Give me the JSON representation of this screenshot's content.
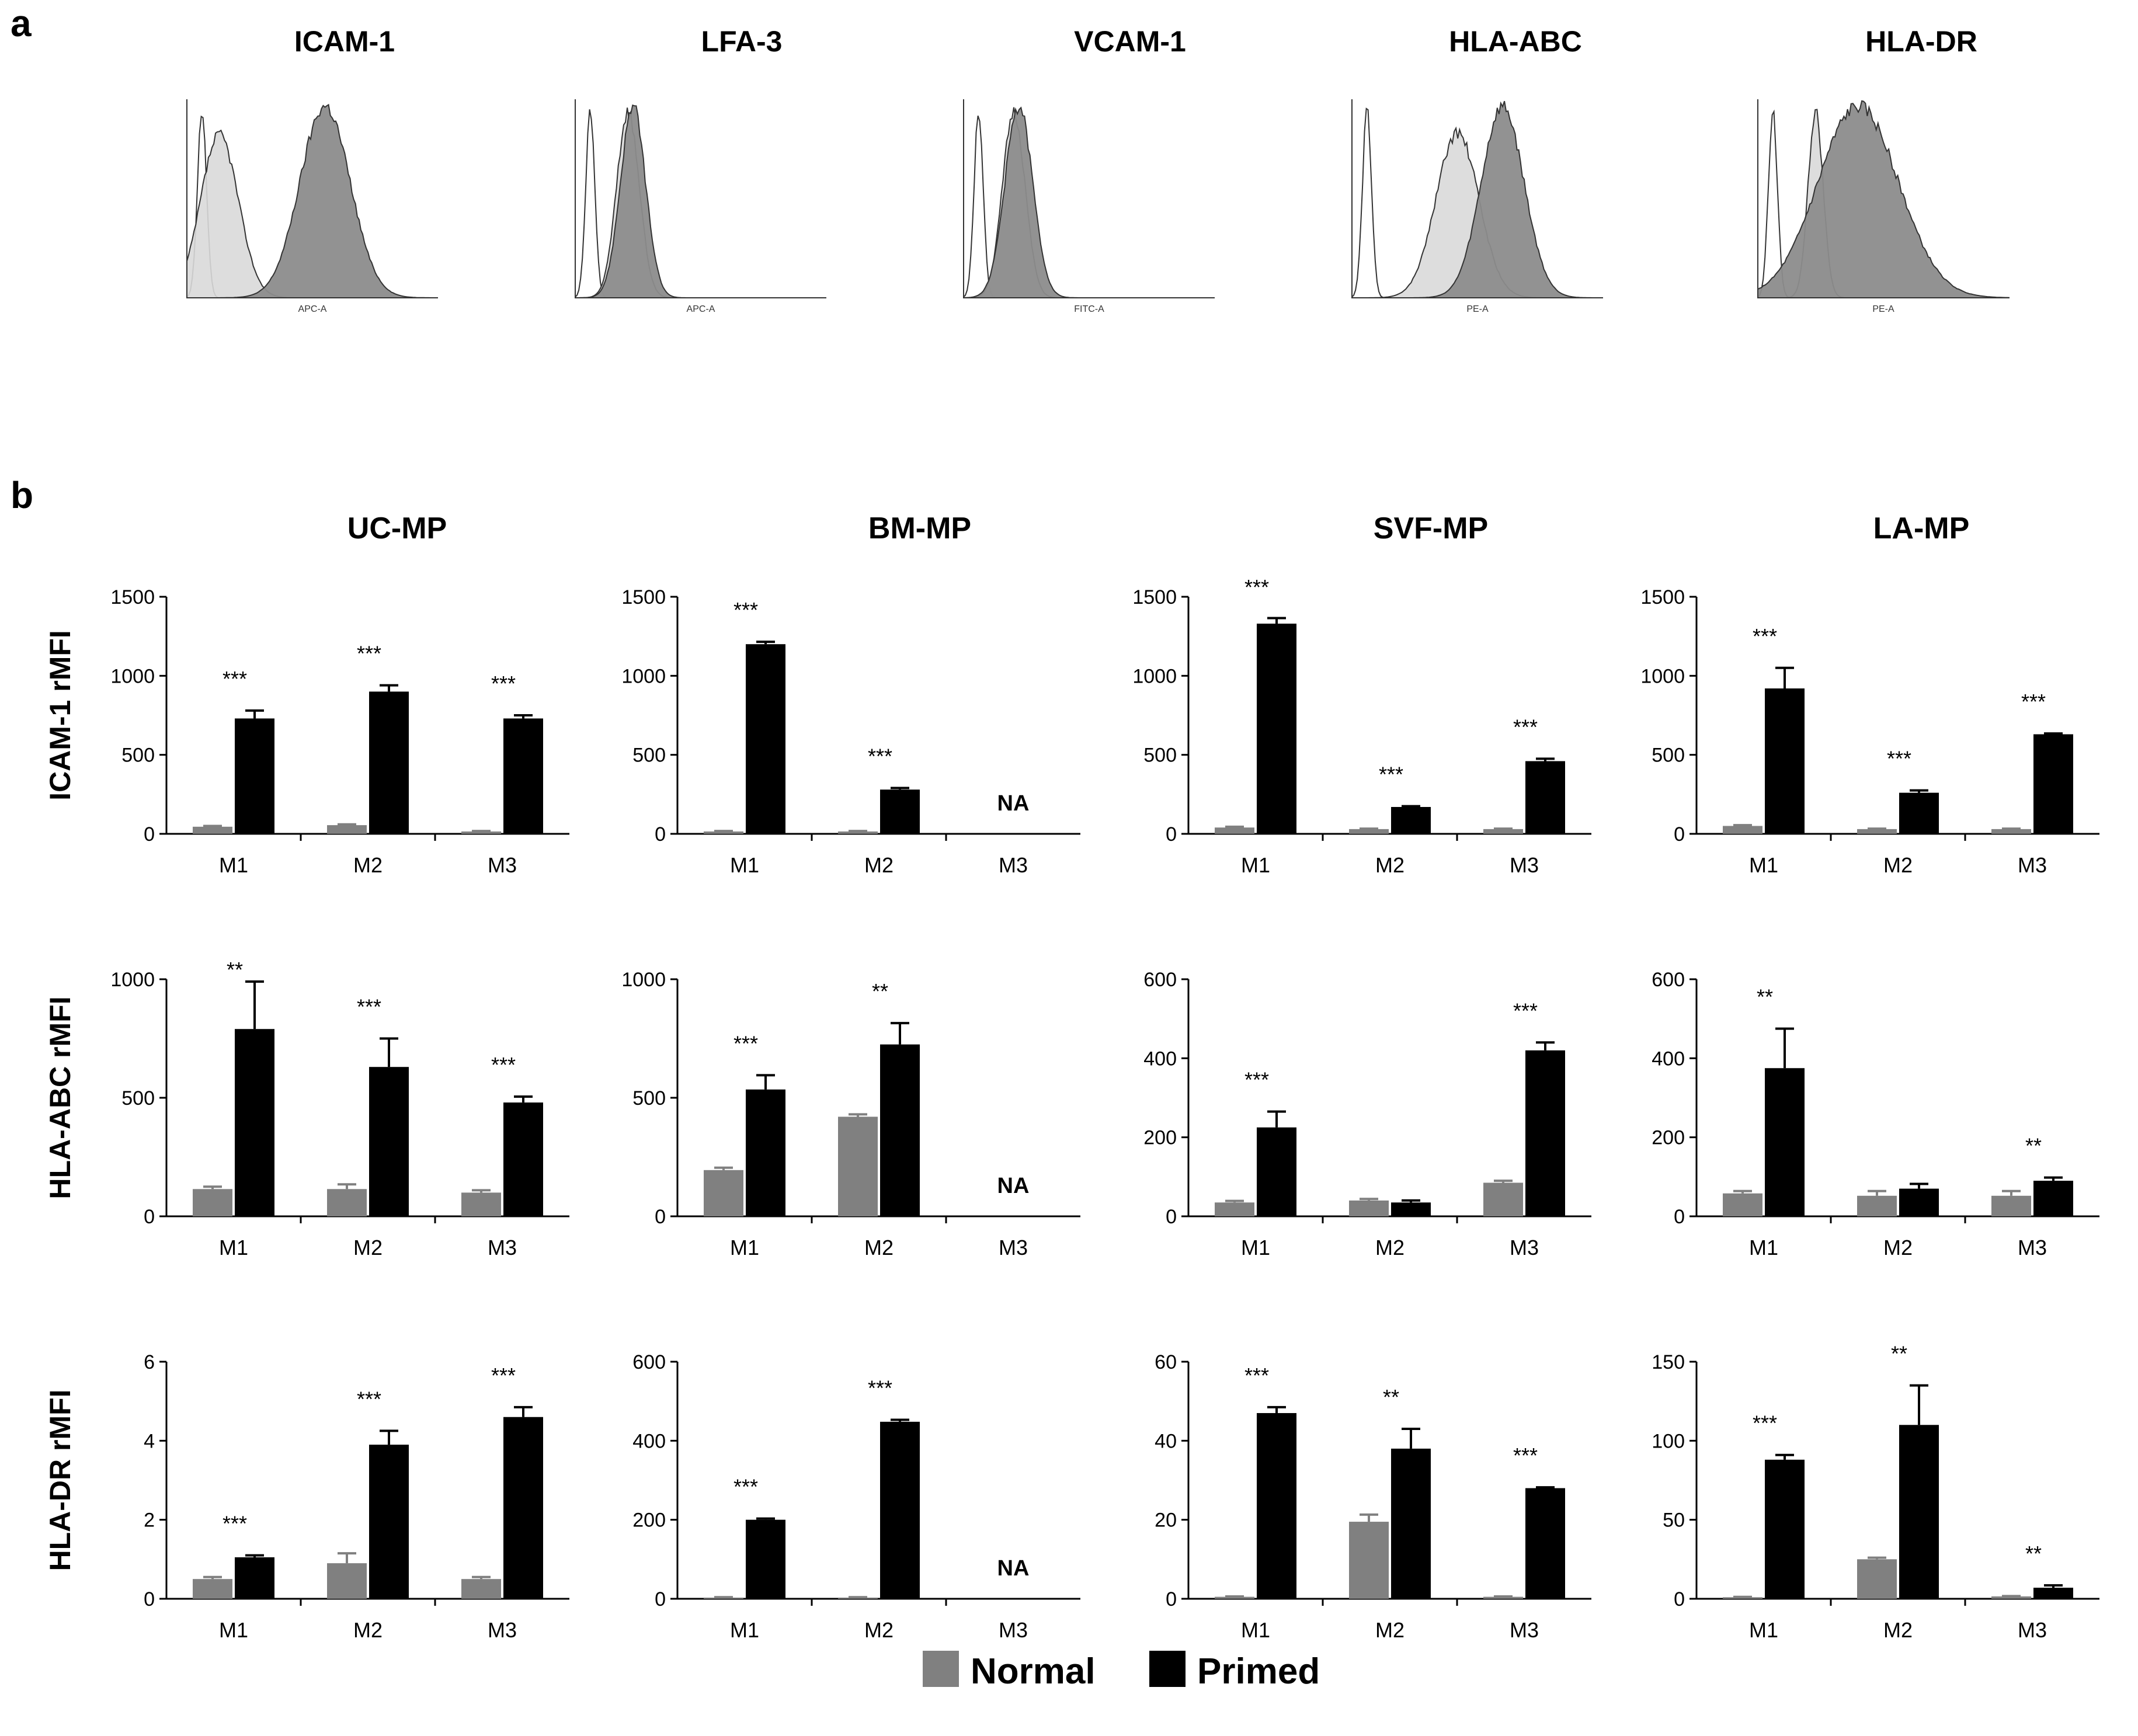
{
  "panel_a_label": "a",
  "panel_b_label": "b",
  "colors": {
    "normal": "#808080",
    "primed": "#000000",
    "hist_control_fill": "#ffffff",
    "hist_light_fill": "#d9d9d9",
    "hist_dark_fill": "#8c8c8c",
    "hist_outline": "#333333"
  },
  "histograms": [
    {
      "title": "ICAM-1",
      "xlabel": "APC-A",
      "light": [
        0.9,
        0.13,
        0.075,
        0.85
      ],
      "dark": [
        0.9,
        0.55,
        0.1,
        1.0
      ]
    },
    {
      "title": "LFA-3",
      "xlabel": "APC-A",
      "light": [
        0.9,
        0.21,
        0.045,
        0.97
      ],
      "dark": [
        0.9,
        0.23,
        0.05,
        1.0
      ]
    },
    {
      "title": "VCAM-1",
      "xlabel": "FITC-A",
      "light": [
        0.9,
        0.2,
        0.045,
        0.97
      ],
      "dark": [
        0.9,
        0.22,
        0.055,
        1.0
      ]
    },
    {
      "title": "HLA-ABC",
      "xlabel": "PE-A",
      "light": [
        0.9,
        0.42,
        0.085,
        0.86
      ],
      "dark": [
        0.9,
        0.6,
        0.085,
        1.0
      ]
    },
    {
      "title": "HLA-DR",
      "xlabel": "PE-A",
      "light": [
        0.9,
        0.23,
        0.03,
        0.97
      ],
      "dark": [
        0.9,
        0.4,
        0.16,
        1.0
      ]
    }
  ],
  "column_titles": [
    "UC-MP",
    "BM-MP",
    "SVF-MP",
    "LA-MP"
  ],
  "row_titles": [
    "ICAM-1 rMFI",
    "HLA-ABC rMFI",
    "HLA-DR rMFI"
  ],
  "legend": {
    "normal": "Normal",
    "primed": "Primed"
  },
  "chart_data": [
    {
      "type": "bar",
      "row": 0,
      "col": 0,
      "ylabel": "ICAM-1 rMFI",
      "title": "UC-MP",
      "ylim": [
        0,
        1500
      ],
      "yticks": [
        "0",
        "500",
        "1000",
        "1500"
      ],
      "yticks_values": [
        0,
        500,
        1000,
        1500
      ],
      "categories": [
        "M1",
        "M2",
        "M3"
      ],
      "series": [
        {
          "name": "Normal",
          "values": [
            45,
            55,
            15
          ],
          "errors": [
            5,
            5,
            3
          ]
        },
        {
          "name": "Primed",
          "values": [
            730,
            900,
            730
          ],
          "errors": [
            50,
            40,
            20
          ]
        }
      ],
      "significance": [
        "***",
        "***",
        "***"
      ],
      "na": [
        false,
        false,
        false
      ]
    },
    {
      "type": "bar",
      "row": 0,
      "col": 1,
      "ylabel": "ICAM-1 rMFI",
      "title": "BM-MP",
      "ylim": [
        0,
        1500
      ],
      "yticks": [
        "0",
        "500",
        "1000",
        "1500"
      ],
      "yticks_values": [
        0,
        500,
        1000,
        1500
      ],
      "categories": [
        "M1",
        "M2",
        "M3"
      ],
      "series": [
        {
          "name": "Normal",
          "values": [
            15,
            15,
            null
          ],
          "errors": [
            3,
            3,
            null
          ]
        },
        {
          "name": "Primed",
          "values": [
            1200,
            280,
            null
          ],
          "errors": [
            15,
            10,
            null
          ]
        }
      ],
      "significance": [
        "***",
        "***",
        ""
      ],
      "na": [
        false,
        false,
        true
      ],
      "na_text": "NA"
    },
    {
      "type": "bar",
      "row": 0,
      "col": 2,
      "ylabel": "ICAM-1 rMFI",
      "title": "SVF-MP",
      "ylim": [
        0,
        1500
      ],
      "yticks": [
        "0",
        "500",
        "1000",
        "1500"
      ],
      "yticks_values": [
        0,
        500,
        1000,
        1500
      ],
      "categories": [
        "M1",
        "M2",
        "M3"
      ],
      "series": [
        {
          "name": "Normal",
          "values": [
            40,
            30,
            30
          ],
          "errors": [
            5,
            3,
            3
          ]
        },
        {
          "name": "Primed",
          "values": [
            1330,
            170,
            460
          ],
          "errors": [
            35,
            5,
            15
          ]
        }
      ],
      "significance": [
        "***",
        "***",
        "***"
      ],
      "na": [
        false,
        false,
        false
      ]
    },
    {
      "type": "bar",
      "row": 0,
      "col": 3,
      "ylabel": "ICAM-1 rMFI",
      "title": "LA-MP",
      "ylim": [
        0,
        1500
      ],
      "yticks": [
        "0",
        "500",
        "1000",
        "1500"
      ],
      "yticks_values": [
        0,
        500,
        1000,
        1500
      ],
      "categories": [
        "M1",
        "M2",
        "M3"
      ],
      "series": [
        {
          "name": "Normal",
          "values": [
            50,
            30,
            30
          ],
          "errors": [
            5,
            3,
            3
          ]
        },
        {
          "name": "Primed",
          "values": [
            920,
            260,
            630
          ],
          "errors": [
            130,
            15,
            5
          ]
        }
      ],
      "significance": [
        "***",
        "***",
        "***"
      ],
      "na": [
        false,
        false,
        false
      ]
    },
    {
      "type": "bar",
      "row": 1,
      "col": 0,
      "ylabel": "HLA-ABC rMFI",
      "title": "UC-MP",
      "ylim": [
        0,
        1000
      ],
      "yticks": [
        "0",
        "500",
        "1000"
      ],
      "yticks_values": [
        0,
        500,
        1000
      ],
      "categories": [
        "M1",
        "M2",
        "M3"
      ],
      "series": [
        {
          "name": "Normal",
          "values": [
            115,
            115,
            100
          ],
          "errors": [
            10,
            20,
            10
          ]
        },
        {
          "name": "Primed",
          "values": [
            790,
            630,
            480
          ],
          "errors": [
            200,
            120,
            25
          ]
        }
      ],
      "significance": [
        "**",
        "***",
        "***"
      ],
      "na": [
        false,
        false,
        false
      ]
    },
    {
      "type": "bar",
      "row": 1,
      "col": 1,
      "ylabel": "HLA-ABC rMFI",
      "title": "BM-MP",
      "ylim": [
        0,
        1000
      ],
      "yticks": [
        "0",
        "500",
        "1000"
      ],
      "yticks_values": [
        0,
        500,
        1000
      ],
      "categories": [
        "M1",
        "M2",
        "M3"
      ],
      "series": [
        {
          "name": "Normal",
          "values": [
            195,
            420,
            null
          ],
          "errors": [
            10,
            10,
            null
          ]
        },
        {
          "name": "Primed",
          "values": [
            535,
            725,
            null
          ],
          "errors": [
            60,
            90,
            null
          ]
        }
      ],
      "significance": [
        "***",
        "**",
        ""
      ],
      "na": [
        false,
        false,
        true
      ],
      "na_text": "NA"
    },
    {
      "type": "bar",
      "row": 1,
      "col": 2,
      "ylabel": "HLA-ABC rMFI",
      "title": "SVF-MP",
      "ylim": [
        0,
        600
      ],
      "yticks": [
        "0",
        "200",
        "400",
        "600"
      ],
      "yticks_values": [
        0,
        200,
        400,
        600
      ],
      "categories": [
        "M1",
        "M2",
        "M3"
      ],
      "series": [
        {
          "name": "Normal",
          "values": [
            35,
            40,
            85
          ],
          "errors": [
            4,
            4,
            5
          ]
        },
        {
          "name": "Primed",
          "values": [
            225,
            35,
            420
          ],
          "errors": [
            40,
            5,
            20
          ]
        }
      ],
      "significance": [
        "***",
        "",
        "***"
      ],
      "na": [
        false,
        false,
        false
      ]
    },
    {
      "type": "bar",
      "row": 1,
      "col": 3,
      "ylabel": "HLA-ABC rMFI",
      "title": "LA-MP",
      "ylim": [
        0,
        600
      ],
      "yticks": [
        "0",
        "200",
        "400",
        "600"
      ],
      "yticks_values": [
        0,
        200,
        400,
        600
      ],
      "categories": [
        "M1",
        "M2",
        "M3"
      ],
      "series": [
        {
          "name": "Normal",
          "values": [
            58,
            52,
            52
          ],
          "errors": [
            6,
            12,
            12
          ]
        },
        {
          "name": "Primed",
          "values": [
            375,
            70,
            90
          ],
          "errors": [
            100,
            12,
            8
          ]
        }
      ],
      "significance": [
        "**",
        "",
        "**"
      ],
      "na": [
        false,
        false,
        false
      ]
    },
    {
      "type": "bar",
      "row": 2,
      "col": 0,
      "ylabel": "HLA-DR rMFI",
      "title": "UC-MP",
      "ylim": [
        0,
        6
      ],
      "yticks": [
        "0",
        "2",
        "4",
        "6"
      ],
      "yticks_values": [
        0,
        2,
        4,
        6
      ],
      "categories": [
        "M1",
        "M2",
        "M3"
      ],
      "series": [
        {
          "name": "Normal",
          "values": [
            0.5,
            0.9,
            0.5
          ],
          "errors": [
            0.05,
            0.25,
            0.05
          ]
        },
        {
          "name": "Primed",
          "values": [
            1.05,
            3.9,
            4.6
          ],
          "errors": [
            0.05,
            0.35,
            0.25
          ]
        }
      ],
      "significance": [
        "***",
        "***",
        "***"
      ],
      "na": [
        false,
        false,
        false
      ]
    },
    {
      "type": "bar",
      "row": 2,
      "col": 1,
      "ylabel": "HLA-DR rMFI",
      "title": "BM-MP",
      "ylim": [
        0,
        600
      ],
      "yticks": [
        "0",
        "200",
        "400",
        "600"
      ],
      "yticks_values": [
        0,
        200,
        400,
        600
      ],
      "categories": [
        "M1",
        "M2",
        "M3"
      ],
      "series": [
        {
          "name": "Normal",
          "values": [
            3,
            3,
            null
          ],
          "errors": [
            1,
            1,
            null
          ]
        },
        {
          "name": "Primed",
          "values": [
            200,
            448,
            null
          ],
          "errors": [
            3,
            5,
            null
          ]
        }
      ],
      "significance": [
        "***",
        "***",
        ""
      ],
      "na": [
        false,
        false,
        true
      ],
      "na_text": "NA"
    },
    {
      "type": "bar",
      "row": 2,
      "col": 2,
      "ylabel": "HLA-DR rMFI",
      "title": "SVF-MP",
      "ylim": [
        0,
        60
      ],
      "yticks": [
        "0",
        "20",
        "40",
        "60"
      ],
      "yticks_values": [
        0,
        20,
        40,
        60
      ],
      "categories": [
        "M1",
        "M2",
        "M3"
      ],
      "series": [
        {
          "name": "Normal",
          "values": [
            0.5,
            19.5,
            0.5
          ],
          "errors": [
            0.1,
            1.8,
            0.1
          ]
        },
        {
          "name": "Primed",
          "values": [
            47,
            38,
            28
          ],
          "errors": [
            1.5,
            5,
            0.2
          ]
        }
      ],
      "significance": [
        "***",
        "**",
        "***"
      ],
      "na": [
        false,
        false,
        false
      ]
    },
    {
      "type": "bar",
      "row": 2,
      "col": 3,
      "ylabel": "HLA-DR rMFI",
      "title": "LA-MP",
      "ylim": [
        0,
        150
      ],
      "yticks": [
        "0",
        "50",
        "100",
        "150"
      ],
      "yticks_values": [
        0,
        50,
        100,
        150
      ],
      "categories": [
        "M1",
        "M2",
        "M3"
      ],
      "series": [
        {
          "name": "Normal",
          "values": [
            1,
            25,
            1.5
          ],
          "errors": [
            0.2,
            1,
            0.2
          ]
        },
        {
          "name": "Primed",
          "values": [
            88,
            110,
            7
          ],
          "errors": [
            3,
            25,
            1.5
          ]
        }
      ],
      "significance": [
        "***",
        "**",
        "**"
      ],
      "na": [
        false,
        false,
        false
      ]
    }
  ]
}
